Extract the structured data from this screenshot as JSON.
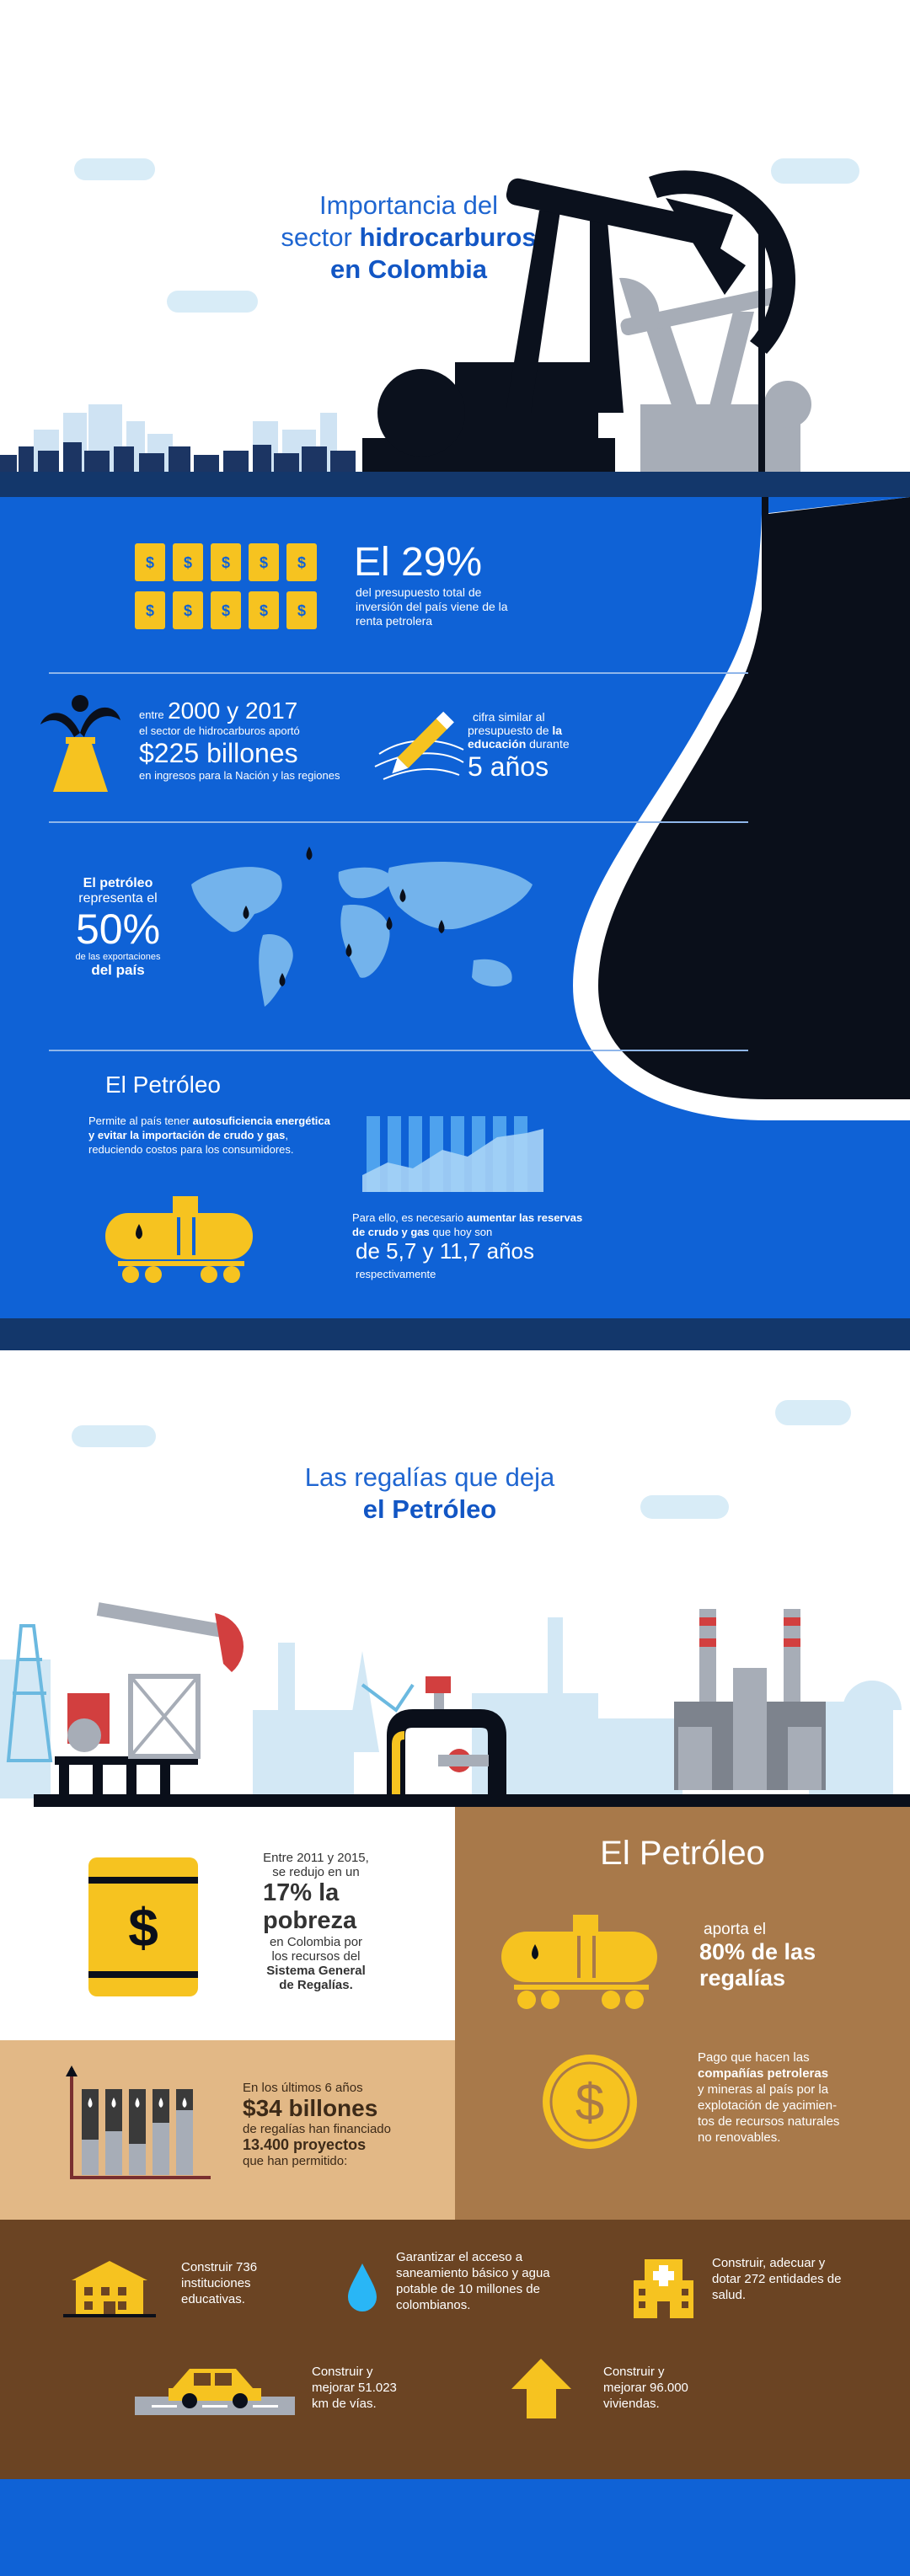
{
  "header": {
    "title_line1": "Importancia del",
    "title_line2_prefix": "sector ",
    "title_line2_bold": "hidrocarburos",
    "title_line3": "en Colombia"
  },
  "stat1": {
    "big": "El 29%",
    "text": "del presupuesto total de inversión del país viene de la renta petrolera"
  },
  "stat2": {
    "prefix": "entre",
    "years": "2000 y 2017",
    "line2": "el sector de hidrocarburos aportó",
    "amount": "$225 billones",
    "line3": "en ingresos para la Nación y las regiones"
  },
  "stat3": {
    "line1_a": "cifra similar al",
    "line2_a": "presupuesto de ",
    "line2_b": "la",
    "line3_a": "educación",
    "line3_b": " durante",
    "big": "5 años"
  },
  "stat4": {
    "line1": "El petróleo",
    "line2": "representa el",
    "big": "50%",
    "line3": "de las exportaciones",
    "line4": "del país"
  },
  "petroleo1": {
    "title": "El Petróleo",
    "p1a": "Permite al país tener ",
    "p1b": "autosuficiencia energética y evitar la importación de crudo y gas",
    "p1c": ", reduciendo costos para los consumidores.",
    "p2a": "Para ello, es necesario ",
    "p2b": "aumentar las reservas de crudo y gas",
    "p2c": " que hoy son",
    "big": "de 5,7 y 11,7 años",
    "p3": "respectivamente"
  },
  "regalias": {
    "title_line1": "Las regalías que deja",
    "title_line2": "el Petróleo"
  },
  "pobreza": {
    "line1": "Entre 2011 y 2015,",
    "line2": "se redujo en un",
    "big1": "17% la",
    "big2": "pobreza",
    "line3": "en Colombia por",
    "line4": "los recursos del",
    "bold1": "Sistema General",
    "bold2": "de Regalías."
  },
  "petroleo2": {
    "title": "El Petróleo",
    "line1": "aporta el",
    "big1": "80% de las",
    "big2": "regalías",
    "p1a": "Pago que hacen las",
    "p1b": "compañías petroleras",
    "p1c": "y mineras al país por la",
    "p1d": "explotación de yacimien-",
    "p1e": "tos de recursos naturales",
    "p1f": "no renovables."
  },
  "billones": {
    "line1": "En los últimos 6 años",
    "big": "$34 billones",
    "line2": "de regalías han financiado",
    "bold": "13.400 proyectos",
    "line3": "que han permitido:"
  },
  "projects": [
    "Construir 736 instituciones educativas.",
    "Garantizar el acceso a saneamiento básico y agua potable de 10 millones de colombianos.",
    "Construir, adecuar y dotar 272 entidades de salud.",
    "Construir y mejorar 51.023 km de vías.",
    "Construir y mejorar 96.000 viviendas."
  ],
  "colors": {
    "blue": "#0f62d6",
    "navy": "#13376b",
    "yellow": "#f6c320",
    "oil": "#0a0f1a",
    "brown_light": "#e2b886",
    "brown_mid": "#a8794a",
    "brown_dark": "#6b4423"
  },
  "icons": [
    "dollar-barrel-icon",
    "oil-gusher-icon",
    "pencil-icon",
    "world-map-icon",
    "tank-car-icon",
    "area-chart-icon",
    "oil-barrel-icon",
    "coin-icon",
    "bar-chart-icon",
    "school-icon",
    "water-drop-icon",
    "hospital-icon",
    "car-icon",
    "house-arrow-icon"
  ]
}
